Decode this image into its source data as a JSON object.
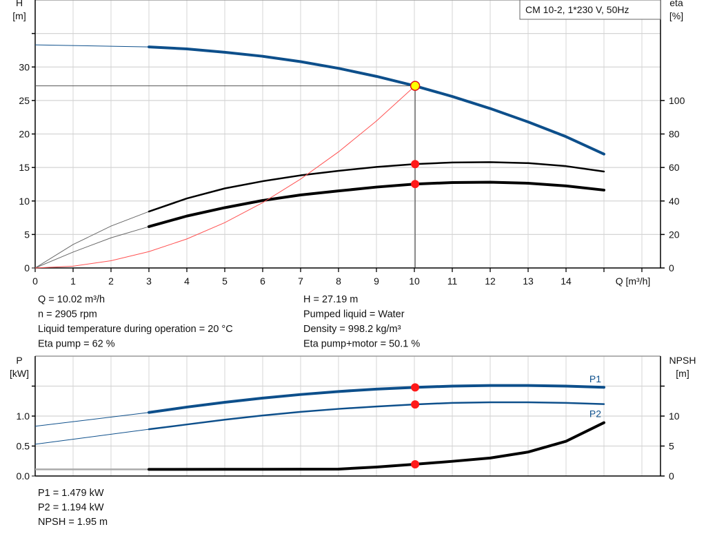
{
  "chart_data": [
    {
      "type": "line",
      "title": "CM 10-2, 1*230 V, 50Hz",
      "xlabel": "Q [m³/h]",
      "ylabel_left": "H\n[m]",
      "ylabel_right": "eta\n[%]",
      "xlim": [
        0,
        16.3
      ],
      "ylim_left": [
        0,
        40
      ],
      "ylim_right": [
        0,
        160
      ],
      "grid": true,
      "x_ticks": [
        "0",
        "1",
        "2",
        "3",
        "4",
        "5",
        "6",
        "7",
        "8",
        "9",
        "10",
        "11",
        "12",
        "13",
        "14"
      ],
      "y_ticks_left": [
        "0",
        "5",
        "10",
        "15",
        "20",
        "25",
        "30"
      ],
      "y_ticks_right": [
        "0",
        "20",
        "40",
        "60",
        "80",
        "100"
      ],
      "series": [
        {
          "curve": "H",
          "axis": "left",
          "color": "#0d4f8b",
          "x": [
            0,
            1,
            2,
            3,
            4,
            5,
            6,
            7,
            8,
            9,
            10,
            11,
            12,
            13,
            14,
            15
          ],
          "y": [
            33.3,
            33.2,
            33.1,
            33.0,
            32.7,
            32.2,
            31.6,
            30.8,
            29.8,
            28.6,
            27.2,
            25.6,
            23.8,
            21.8,
            19.6,
            17.0
          ]
        },
        {
          "curve": "eta pump",
          "axis": "right",
          "color": "#000000",
          "x": [
            0,
            1,
            2,
            3,
            4,
            5,
            6,
            7,
            8,
            9,
            10,
            11,
            12,
            13,
            14,
            15
          ],
          "y": [
            0,
            14,
            25,
            33.7,
            41.5,
            47.5,
            51.8,
            55.3,
            58,
            60.3,
            62,
            63,
            63.2,
            62.6,
            60.8,
            57.6
          ]
        },
        {
          "curve": "eta pump+motor",
          "axis": "right",
          "color": "#000000",
          "x": [
            0,
            1,
            2,
            3,
            4,
            5,
            6,
            7,
            8,
            9,
            10,
            11,
            12,
            13,
            14,
            15
          ],
          "y": [
            0,
            9.5,
            18,
            24.7,
            31,
            36,
            40.3,
            43.6,
            46,
            48.3,
            50.1,
            51,
            51.2,
            50.6,
            49,
            46.5
          ]
        },
        {
          "curve": "system",
          "axis": "left",
          "color": "#ff5050",
          "x": [
            0,
            1,
            2,
            3,
            4,
            5,
            6,
            7,
            8,
            9,
            10.02
          ],
          "y": [
            0,
            0.27,
            1.08,
            2.44,
            4.33,
            6.77,
            9.75,
            13.27,
            17.33,
            21.94,
            27.19
          ]
        }
      ],
      "operating_point": {
        "Q": 10.02,
        "H": 27.19,
        "eta_pump": 62,
        "eta_pump_motor": 50.1
      }
    },
    {
      "type": "line",
      "ylabel_left": "P\n[kW]",
      "ylabel_right": "NPSH\n[m]",
      "xlim": [
        0,
        16.3
      ],
      "ylim_left": [
        0,
        2.0
      ],
      "ylim_right": [
        0,
        20
      ],
      "grid": true,
      "y_ticks_left": [
        "0.0",
        "0.5",
        "1.0"
      ],
      "y_ticks_right": [
        "0",
        "5",
        "10"
      ],
      "series": [
        {
          "name": "P1",
          "axis": "left",
          "color": "#0d4f8b",
          "x": [
            0,
            3,
            4,
            5,
            6,
            7,
            8,
            9,
            10,
            11,
            12,
            13,
            14,
            15
          ],
          "y": [
            0.83,
            1.06,
            1.15,
            1.23,
            1.3,
            1.36,
            1.41,
            1.45,
            1.479,
            1.5,
            1.51,
            1.51,
            1.5,
            1.48
          ]
        },
        {
          "name": "P2",
          "axis": "left",
          "color": "#0d4f8b",
          "x": [
            0,
            3,
            4,
            5,
            6,
            7,
            8,
            9,
            10,
            11,
            12,
            13,
            14,
            15
          ],
          "y": [
            0.53,
            0.78,
            0.86,
            0.94,
            1.01,
            1.07,
            1.12,
            1.16,
            1.194,
            1.22,
            1.23,
            1.23,
            1.22,
            1.2
          ]
        },
        {
          "curve": "NPSH",
          "axis": "right",
          "color": "#000000",
          "x": [
            0,
            3,
            5,
            7,
            8,
            9,
            10,
            11,
            12,
            13,
            14,
            15
          ],
          "y": [
            1.1,
            1.1,
            1.12,
            1.13,
            1.15,
            1.5,
            1.95,
            2.45,
            3.0,
            4.0,
            5.8,
            8.9
          ]
        }
      ],
      "operating_point": {
        "Q": 10.02,
        "P1": 1.479,
        "P2": 1.194,
        "NPSH": 1.95
      }
    }
  ],
  "info_top_left": [
    "Q = 10.02 m³/h",
    "n = 2905 rpm",
    "Liquid temperature during operation = 20 °C",
    "Eta pump = 62 %"
  ],
  "info_top_right": [
    "H = 27.19 m",
    "Pumped liquid = Water",
    "Density = 998.2 kg/m³",
    "Eta pump+motor = 50.1 %"
  ],
  "info_bottom": [
    "P1 = 1.479 kW",
    "P2 = 1.194 kW",
    "NPSH = 1.95 m"
  ]
}
